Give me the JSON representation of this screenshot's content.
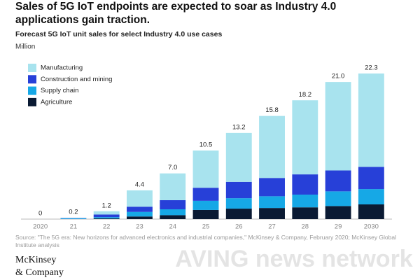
{
  "chart_data": {
    "type": "stacked-bar",
    "title": "Sales of 5G IoT endpoints are expected to soar as Industry 4.0 applications gain traction.",
    "subtitle": "Forecast 5G IoT unit sales for select Industry 4.0 use cases",
    "unit": "Million",
    "categories": [
      "2020",
      "21",
      "22",
      "23",
      "24",
      "25",
      "26",
      "27",
      "28",
      "29",
      "2030"
    ],
    "series": [
      {
        "name": "Manufacturing",
        "color": "#a8e3ee",
        "values": [
          0,
          0.05,
          0.5,
          2.5,
          4.1,
          5.7,
          7.5,
          9.5,
          11.35,
          13.55,
          14.3
        ]
      },
      {
        "name": "Construction and mining",
        "color": "#2740d8",
        "values": [
          0,
          0.05,
          0.4,
          0.8,
          1.4,
          2.0,
          2.5,
          2.8,
          3.1,
          3.2,
          3.4
        ]
      },
      {
        "name": "Supply chain",
        "color": "#16a8e6",
        "values": [
          0,
          0.1,
          0.2,
          0.7,
          0.9,
          1.4,
          1.6,
          1.8,
          1.95,
          2.25,
          2.35
        ]
      },
      {
        "name": "Agriculture",
        "color": "#0a1a33",
        "values": [
          0,
          0,
          0.1,
          0.4,
          0.6,
          1.4,
          1.6,
          1.7,
          1.8,
          2.0,
          2.25
        ]
      }
    ],
    "totals": [
      0,
      0.2,
      1.2,
      4.4,
      7.0,
      10.5,
      13.2,
      15.8,
      18.2,
      21.0,
      22.3
    ],
    "total_labels": [
      "0",
      "0.2",
      "1.2",
      "4.4",
      "7.0",
      "10.5",
      "13.2",
      "15.8",
      "18.2",
      "21.0",
      "22.3"
    ],
    "source": "Source: \"The 5G era: New horizons for advanced electronics and industrial companies,\" McKinsey & Company, February 2020; McKinsey Global Institute analysis",
    "logo": [
      "McKinsey",
      "& Company"
    ],
    "watermark": "AVING news network"
  }
}
